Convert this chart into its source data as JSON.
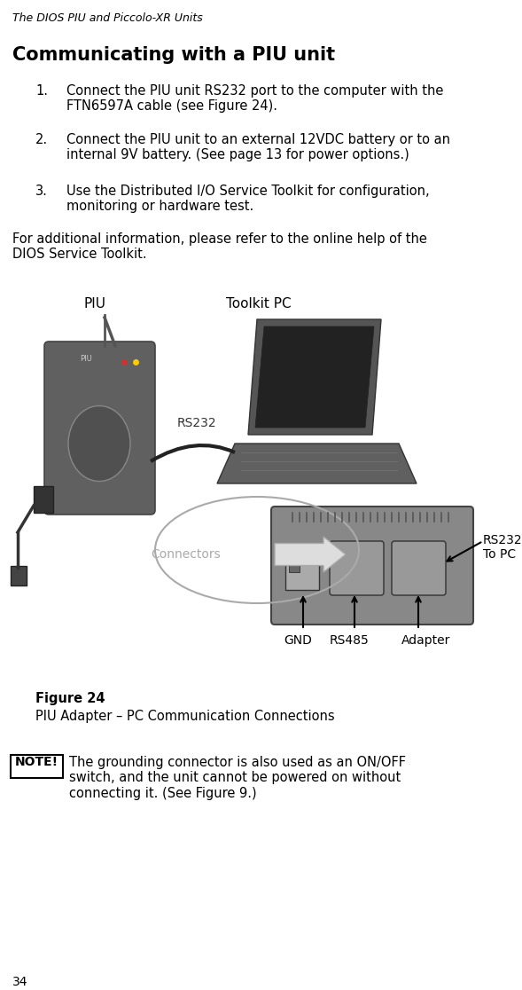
{
  "bg_color": "#ffffff",
  "header_text": "The DIOS PIU and Piccolo-XR Units",
  "section_title": "Communicating with a PIU unit",
  "list_items": [
    "Connect the PIU unit RS232 port to the computer with the\nFTN6597A cable (see Figure 24).",
    "Connect the PIU unit to an external 12VDC battery or to an\ninternal 9V battery. (See page 13 for power options.)",
    "Use the Distributed I/O Service Toolkit for configuration,\nmonitoring or hardware test."
  ],
  "extra_text": "For additional information, please refer to the online help of the\nDIOS Service Toolkit.",
  "figure_caption_bold": "Figure 24",
  "figure_caption_normal": "PIU Adapter – PC Communication Connections",
  "note_label": "NOTE!",
  "note_text": "The grounding connector is also used as an ON/OFF\nswitch, and the unit cannot be powered on without\nconnecting it. (See Figure 9.)",
  "page_number": "34",
  "piu_label": "PIU",
  "pc_label": "Toolkit PC",
  "rs232_label": "RS232",
  "rs232_topc_label": "RS232\nTo PC",
  "connectors_label": "Connectors",
  "gnd_label": "GND",
  "rs485_label": "RS485",
  "adapter_label": "Adapter"
}
